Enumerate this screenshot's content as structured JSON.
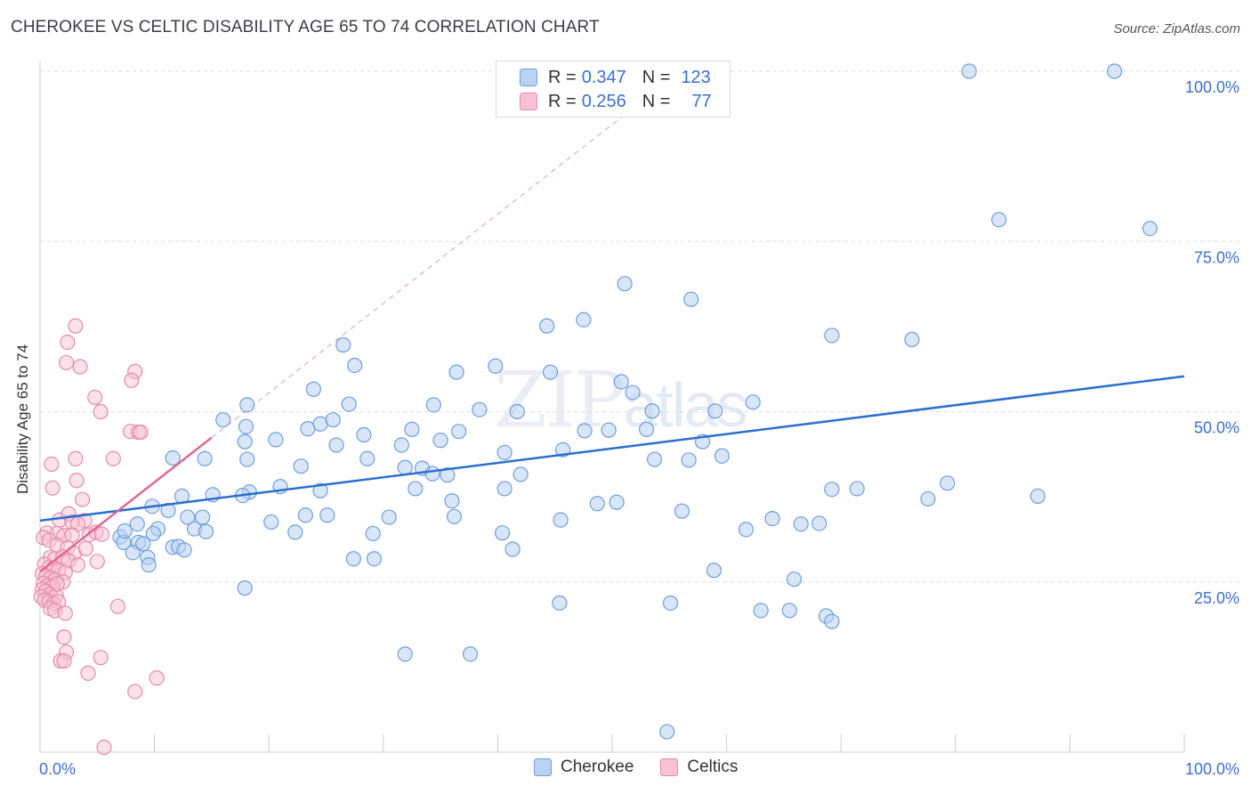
{
  "header": {
    "title": "CHEROKEE VS CELTIC DISABILITY AGE 65 TO 74 CORRELATION CHART",
    "source": "Source: ZipAtlas.com"
  },
  "watermark": {
    "part1": "ZIP",
    "part2": "atlas"
  },
  "legend": {
    "rows": [
      {
        "r_label": "R =",
        "r_value": "0.347",
        "n_label": "N =",
        "n_value": "123"
      },
      {
        "r_label": "R =",
        "r_value": "0.256",
        "n_label": "N =",
        "n_value": "77"
      }
    ]
  },
  "bottom_legend": {
    "items": [
      "Cherokee",
      "Celtics"
    ]
  },
  "colors": {
    "cherokee_fill": "#b9d2f2",
    "cherokee_stroke": "#6e9ede",
    "cherokee_line": "#2a6fd0",
    "celtics_fill": "#f7c3d3",
    "celtics_stroke": "#e58aa8",
    "celtics_line": "#e06590",
    "axis_label": "#3a6fd0",
    "grid": "#dddddd"
  },
  "chart_data": {
    "type": "scatter",
    "title": "CHEROKEE VS CELTIC DISABILITY AGE 65 TO 74 CORRELATION CHART",
    "xlabel": "",
    "ylabel": "Disability Age 65 to 74",
    "xlim": [
      0,
      100
    ],
    "ylim": [
      0,
      100
    ],
    "x_tick_labels": [
      "0.0%",
      "100.0%"
    ],
    "y_tick_labels": [
      {
        "value": 25,
        "label": "25.0%"
      },
      {
        "value": 50,
        "label": "50.0%"
      },
      {
        "value": 75,
        "label": "75.0%"
      },
      {
        "value": 100,
        "label": "100.0%"
      }
    ],
    "grid": true,
    "legend_position": "top-center",
    "series": [
      {
        "name": "Cherokee",
        "r": 0.347,
        "n": 123,
        "trend": {
          "x": [
            0,
            100
          ],
          "y": [
            34.0,
            55.2
          ]
        },
        "points": [
          [
            81.2,
            100.0
          ],
          [
            93.9,
            100.0
          ],
          [
            97.0,
            76.9
          ],
          [
            83.8,
            78.2
          ],
          [
            51.1,
            68.8
          ],
          [
            56.9,
            66.5
          ],
          [
            47.5,
            63.5
          ],
          [
            44.3,
            62.6
          ],
          [
            69.2,
            61.2
          ],
          [
            76.2,
            60.6
          ],
          [
            26.5,
            59.8
          ],
          [
            27.5,
            56.8
          ],
          [
            36.4,
            55.8
          ],
          [
            39.8,
            56.7
          ],
          [
            44.6,
            55.8
          ],
          [
            50.8,
            54.4
          ],
          [
            51.8,
            52.8
          ],
          [
            23.9,
            53.3
          ],
          [
            27.0,
            51.1
          ],
          [
            34.4,
            51.0
          ],
          [
            41.7,
            50.0
          ],
          [
            38.4,
            50.3
          ],
          [
            62.3,
            51.4
          ],
          [
            59.0,
            50.1
          ],
          [
            18.1,
            51.0
          ],
          [
            16.0,
            48.8
          ],
          [
            23.4,
            47.5
          ],
          [
            24.5,
            48.2
          ],
          [
            25.6,
            48.8
          ],
          [
            28.3,
            46.6
          ],
          [
            32.5,
            47.4
          ],
          [
            36.6,
            47.1
          ],
          [
            49.7,
            47.3
          ],
          [
            53.0,
            47.4
          ],
          [
            18.0,
            47.8
          ],
          [
            17.9,
            45.6
          ],
          [
            20.6,
            45.9
          ],
          [
            25.9,
            45.1
          ],
          [
            31.6,
            45.1
          ],
          [
            35.0,
            45.8
          ],
          [
            40.6,
            44.0
          ],
          [
            45.7,
            44.4
          ],
          [
            57.9,
            45.6
          ],
          [
            59.6,
            43.5
          ],
          [
            53.7,
            43.0
          ],
          [
            56.7,
            42.9
          ],
          [
            14.4,
            43.1
          ],
          [
            11.6,
            43.2
          ],
          [
            18.1,
            43.0
          ],
          [
            22.8,
            42.0
          ],
          [
            28.6,
            43.1
          ],
          [
            31.9,
            41.8
          ],
          [
            33.4,
            41.7
          ],
          [
            34.3,
            40.9
          ],
          [
            35.6,
            40.7
          ],
          [
            42.0,
            40.8
          ],
          [
            40.6,
            38.7
          ],
          [
            32.8,
            38.7
          ],
          [
            24.5,
            38.4
          ],
          [
            21.0,
            39.0
          ],
          [
            18.3,
            38.2
          ],
          [
            15.1,
            37.8
          ],
          [
            12.4,
            37.6
          ],
          [
            17.7,
            37.7
          ],
          [
            36.0,
            36.9
          ],
          [
            48.7,
            36.5
          ],
          [
            56.1,
            35.4
          ],
          [
            71.4,
            38.7
          ],
          [
            77.6,
            37.2
          ],
          [
            79.3,
            39.5
          ],
          [
            87.2,
            37.6
          ],
          [
            68.1,
            33.6
          ],
          [
            69.2,
            38.6
          ],
          [
            9.8,
            36.1
          ],
          [
            11.2,
            35.5
          ],
          [
            20.2,
            33.8
          ],
          [
            12.9,
            34.5
          ],
          [
            14.2,
            34.5
          ],
          [
            23.2,
            34.8
          ],
          [
            25.1,
            34.8
          ],
          [
            30.5,
            34.5
          ],
          [
            45.5,
            34.1
          ],
          [
            50.4,
            36.7
          ],
          [
            61.7,
            32.7
          ],
          [
            64.0,
            34.3
          ],
          [
            66.5,
            33.5
          ],
          [
            8.5,
            33.5
          ],
          [
            10.3,
            32.8
          ],
          [
            13.5,
            32.8
          ],
          [
            14.5,
            32.4
          ],
          [
            22.3,
            32.3
          ],
          [
            29.1,
            32.1
          ],
          [
            40.4,
            32.2
          ],
          [
            8.6,
            30.8
          ],
          [
            7.0,
            31.6
          ],
          [
            7.3,
            30.8
          ],
          [
            9.0,
            30.6
          ],
          [
            11.6,
            30.1
          ],
          [
            12.1,
            30.2
          ],
          [
            12.6,
            29.7
          ],
          [
            8.1,
            29.3
          ],
          [
            9.4,
            28.6
          ],
          [
            9.5,
            27.5
          ],
          [
            27.4,
            28.4
          ],
          [
            29.2,
            28.4
          ],
          [
            58.9,
            26.7
          ],
          [
            65.9,
            25.4
          ],
          [
            17.9,
            24.1
          ],
          [
            45.4,
            21.9
          ],
          [
            55.1,
            21.9
          ],
          [
            63.0,
            20.8
          ],
          [
            65.5,
            20.8
          ],
          [
            68.7,
            20.0
          ],
          [
            69.2,
            19.2
          ],
          [
            31.9,
            14.4
          ],
          [
            37.6,
            14.4
          ],
          [
            54.8,
            3.0
          ],
          [
            7.4,
            32.5
          ],
          [
            9.9,
            32.1
          ],
          [
            41.3,
            29.8
          ],
          [
            36.2,
            34.6
          ],
          [
            47.6,
            47.2
          ],
          [
            53.5,
            50.1
          ]
        ]
      },
      {
        "name": "Celtics",
        "r": 0.256,
        "n": 77,
        "trend": {
          "x": [
            0,
            15
          ],
          "y": [
            26.5,
            46.2
          ]
        },
        "points": [
          [
            3.1,
            62.6
          ],
          [
            2.4,
            60.2
          ],
          [
            2.3,
            57.2
          ],
          [
            3.5,
            56.6
          ],
          [
            8.3,
            55.9
          ],
          [
            8.0,
            54.6
          ],
          [
            4.8,
            52.1
          ],
          [
            5.3,
            50.0
          ],
          [
            7.9,
            47.1
          ],
          [
            8.6,
            47.0
          ],
          [
            8.8,
            47.0
          ],
          [
            1.0,
            42.3
          ],
          [
            1.1,
            38.8
          ],
          [
            3.1,
            43.1
          ],
          [
            6.4,
            43.1
          ],
          [
            3.2,
            39.9
          ],
          [
            3.7,
            37.1
          ],
          [
            1.7,
            34.1
          ],
          [
            3.9,
            34.0
          ],
          [
            2.5,
            35.0
          ],
          [
            2.8,
            33.8
          ],
          [
            3.3,
            33.5
          ],
          [
            0.6,
            32.2
          ],
          [
            1.5,
            32.1
          ],
          [
            2.1,
            31.8
          ],
          [
            2.8,
            31.9
          ],
          [
            4.3,
            31.9
          ],
          [
            4.9,
            32.3
          ],
          [
            5.4,
            32.0
          ],
          [
            0.3,
            31.5
          ],
          [
            0.8,
            31.1
          ],
          [
            1.5,
            30.4
          ],
          [
            2.4,
            30.0
          ],
          [
            3.0,
            29.2
          ],
          [
            4.0,
            29.9
          ],
          [
            0.9,
            28.6
          ],
          [
            1.3,
            28.4
          ],
          [
            2.0,
            28.7
          ],
          [
            2.5,
            28.1
          ],
          [
            3.3,
            27.5
          ],
          [
            5.0,
            28.0
          ],
          [
            0.4,
            27.6
          ],
          [
            0.8,
            27.1
          ],
          [
            1.2,
            27.0
          ],
          [
            1.6,
            26.7
          ],
          [
            2.2,
            26.4
          ],
          [
            0.2,
            26.2
          ],
          [
            0.5,
            25.8
          ],
          [
            0.9,
            25.6
          ],
          [
            1.3,
            25.3
          ],
          [
            2.0,
            25.0
          ],
          [
            0.3,
            24.8
          ],
          [
            0.7,
            24.5
          ],
          [
            1.1,
            24.3
          ],
          [
            0.2,
            23.9
          ],
          [
            0.5,
            23.6
          ],
          [
            0.9,
            23.2
          ],
          [
            1.4,
            23.0
          ],
          [
            0.1,
            22.8
          ],
          [
            0.4,
            22.3
          ],
          [
            0.8,
            22.1
          ],
          [
            1.2,
            21.8
          ],
          [
            1.6,
            22.1
          ],
          [
            0.9,
            21.1
          ],
          [
            1.3,
            20.8
          ],
          [
            2.2,
            20.4
          ],
          [
            6.8,
            21.4
          ],
          [
            2.1,
            16.9
          ],
          [
            2.3,
            14.7
          ],
          [
            1.8,
            13.4
          ],
          [
            2.1,
            13.4
          ],
          [
            5.3,
            13.9
          ],
          [
            4.2,
            11.6
          ],
          [
            8.3,
            8.9
          ],
          [
            10.2,
            10.9
          ],
          [
            5.6,
            0.7
          ],
          [
            1.5,
            24.7
          ]
        ]
      }
    ]
  }
}
